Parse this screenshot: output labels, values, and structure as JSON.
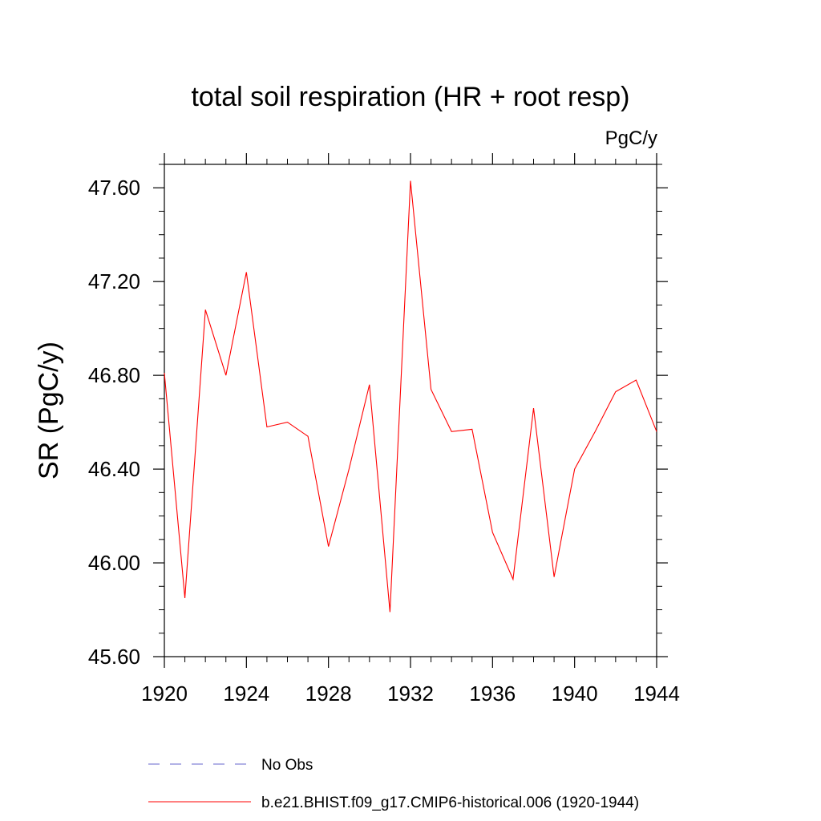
{
  "chart_data": {
    "type": "line",
    "title": "total soil respiration (HR + root resp)",
    "units_label": "PgC/y",
    "xlabel": "",
    "ylabel": "SR  (PgC/y)",
    "xlim": [
      1920,
      1944
    ],
    "ylim": [
      45.6,
      47.7
    ],
    "x_ticks": [
      1920,
      1924,
      1928,
      1932,
      1936,
      1940,
      1944
    ],
    "x_tick_labels": [
      "1920",
      "1924",
      "1928",
      "1932",
      "1936",
      "1940",
      "1944"
    ],
    "y_ticks": [
      45.6,
      46.0,
      46.4,
      46.8,
      47.2,
      47.6
    ],
    "y_tick_labels": [
      "45.60",
      "46.00",
      "46.40",
      "46.80",
      "47.20",
      "47.60"
    ],
    "x_minor_step": 1,
    "y_minor_step": 0.1,
    "series": [
      {
        "name": "b.e21.BHIST.f09_g17.CMIP6-historical.006 (1920-1944)",
        "color": "#ff0000",
        "style": "solid",
        "x": [
          1920,
          1921,
          1922,
          1923,
          1924,
          1925,
          1926,
          1927,
          1928,
          1929,
          1930,
          1931,
          1932,
          1933,
          1934,
          1935,
          1936,
          1937,
          1938,
          1939,
          1940,
          1941,
          1942,
          1943,
          1944
        ],
        "values": [
          46.81,
          45.85,
          47.08,
          46.8,
          47.24,
          46.58,
          46.6,
          46.54,
          46.07,
          46.4,
          46.76,
          45.79,
          47.63,
          46.74,
          46.56,
          46.57,
          46.13,
          45.93,
          46.66,
          45.94,
          46.4,
          46.56,
          46.73,
          46.78,
          46.56
        ]
      }
    ],
    "legend": [
      {
        "label": "No Obs",
        "color": "#6666cc",
        "style": "dashed"
      },
      {
        "label": "b.e21.BHIST.f09_g17.CMIP6-historical.006 (1920-1944)",
        "color": "#ff0000",
        "style": "solid"
      }
    ],
    "legend_position": "bottom"
  }
}
